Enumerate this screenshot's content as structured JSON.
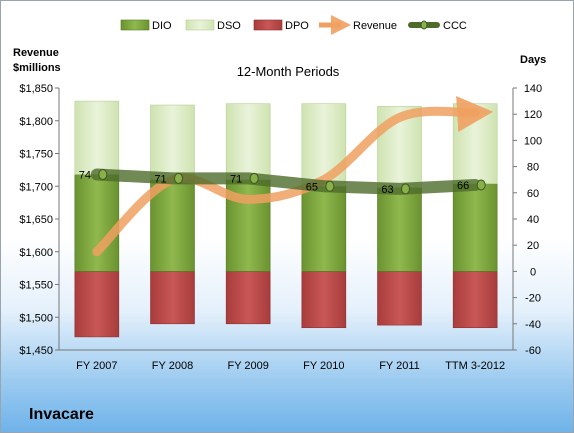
{
  "chart_data": {
    "type": "bar",
    "title": "12-Month Periods",
    "left_axis_label": [
      "Revenue",
      "$millions"
    ],
    "right_axis_label": "Days",
    "categories": [
      "FY 2007",
      "FY 2008",
      "FY 2009",
      "FY 2010",
      "FY 2011",
      "TTM 3-2012"
    ],
    "series": [
      {
        "name": "DIO",
        "type": "stacked-bar-positive",
        "values": [
          74,
          70,
          70,
          65,
          64,
          67
        ],
        "color": "#77a237"
      },
      {
        "name": "DSO",
        "type": "stacked-bar-positive",
        "values": [
          56,
          57,
          58,
          63,
          62,
          61
        ],
        "color": "#d9eac0"
      },
      {
        "name": "DPO",
        "type": "stacked-bar-negative",
        "values": [
          -50,
          -40,
          -40,
          -43,
          -41,
          -43
        ],
        "color": "#b94646"
      },
      {
        "name": "Revenue",
        "type": "line-arrow",
        "axis": "left",
        "values": [
          1600,
          1710,
          1680,
          1710,
          1805,
          1812
        ],
        "color": "#f0a060"
      },
      {
        "name": "CCC",
        "type": "line",
        "axis": "right",
        "values": [
          74,
          71,
          71,
          65,
          63,
          66
        ],
        "color": "#4e6b2b"
      }
    ],
    "ccc_labels": [
      "74",
      "71",
      "71",
      "65",
      "63",
      "66"
    ],
    "left_axis": {
      "min": 1450,
      "max": 1850,
      "step": 50,
      "ticks": [
        "$1,450",
        "$1,500",
        "$1,550",
        "$1,600",
        "$1,650",
        "$1,700",
        "$1,750",
        "$1,800",
        "$1,850"
      ]
    },
    "right_axis": {
      "min": -60,
      "max": 140,
      "step": 20,
      "ticks": [
        "-60",
        "-40",
        "-20",
        "0",
        "20",
        "40",
        "60",
        "80",
        "100",
        "120",
        "140"
      ]
    },
    "legend": [
      "DIO",
      "DSO",
      "DPO",
      "Revenue",
      "CCC"
    ],
    "legend_position": "top",
    "grid": false
  },
  "company": "Invacare"
}
